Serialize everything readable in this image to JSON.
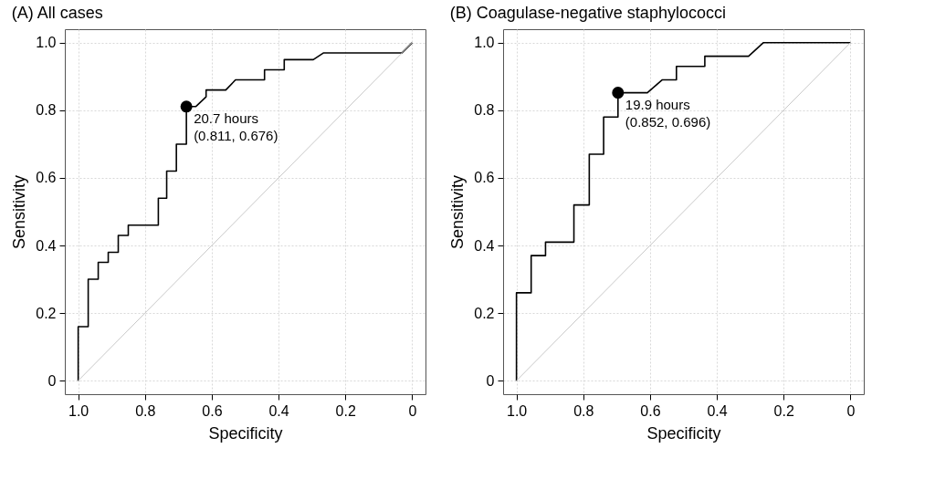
{
  "chart_data": [
    {
      "type": "line",
      "title": "(A) All cases",
      "xlabel": "Specificity",
      "ylabel": "Sensitivity",
      "xlim": [
        1.04,
        -0.04
      ],
      "ylim": [
        -0.04,
        1.04
      ],
      "xticks": [
        {
          "value": 1,
          "label": "1.0"
        },
        0.8,
        0.6,
        0.4,
        0.2,
        0
      ],
      "yticks": [
        0,
        0.2,
        0.4,
        0.6,
        0.8,
        {
          "value": 1,
          "label": "1.0"
        }
      ],
      "grid": true,
      "series": [
        {
          "color": "#000000",
          "marker": "none",
          "x": [
            1.0,
            1.0,
            0.97,
            0.97,
            0.94,
            0.94,
            0.91,
            0.91,
            0.88,
            0.88,
            0.85,
            0.85,
            0.76,
            0.76,
            0.735,
            0.735,
            0.706,
            0.706,
            0.676,
            0.676,
            0.648,
            0.617,
            0.617,
            0.558,
            0.529,
            0.442,
            0.442,
            0.383,
            0.383,
            0.296,
            0.265,
            0.03,
            0
          ],
          "values": [
            0,
            0.16,
            0.16,
            0.3,
            0.3,
            0.35,
            0.35,
            0.38,
            0.38,
            0.43,
            0.43,
            0.46,
            0.46,
            0.54,
            0.54,
            0.62,
            0.62,
            0.7,
            0.7,
            0.811,
            0.811,
            0.84,
            0.86,
            0.86,
            0.89,
            0.89,
            0.92,
            0.92,
            0.95,
            0.95,
            0.97,
            0.97,
            1.0
          ]
        },
        {
          "type": "line",
          "color": "#c8c8c8",
          "marker": "none",
          "x": [
            1,
            0
          ],
          "values": [
            0,
            1
          ]
        },
        {
          "type": "scatter",
          "color": "#000000",
          "marker": "circle",
          "x": [
            0.676
          ],
          "values": [
            0.811
          ]
        }
      ],
      "annotations": [
        {
          "text": "20.7 hours\n(0.811, 0.676)",
          "x": 0.676,
          "y": 0.811
        }
      ]
    },
    {
      "type": "line",
      "title": "(B) Coagulase-negative staphylococci",
      "xlabel": "Specificity",
      "ylabel": "Sensitivity",
      "xlim": [
        1.04,
        -0.04
      ],
      "ylim": [
        -0.04,
        1.04
      ],
      "xticks": [
        {
          "value": 1,
          "label": "1.0"
        },
        0.8,
        0.6,
        0.4,
        0.2,
        0
      ],
      "yticks": [
        0,
        0.2,
        0.4,
        0.6,
        0.8,
        {
          "value": 1,
          "label": "1.0"
        }
      ],
      "grid": true,
      "series": [
        {
          "color": "#000000",
          "marker": "none",
          "x": [
            1,
            1,
            0.956,
            0.956,
            0.913,
            0.913,
            0.828,
            0.828,
            0.782,
            0.782,
            0.739,
            0.739,
            0.696,
            0.696,
            0.608,
            0.564,
            0.521,
            0.521,
            0.436,
            0.436,
            0.305,
            0.261,
            0
          ],
          "values": [
            0,
            0.26,
            0.26,
            0.37,
            0.37,
            0.41,
            0.41,
            0.52,
            0.52,
            0.67,
            0.67,
            0.78,
            0.78,
            0.852,
            0.852,
            0.89,
            0.89,
            0.93,
            0.93,
            0.96,
            0.96,
            1.0,
            1.0
          ]
        },
        {
          "type": "line",
          "color": "#c8c8c8",
          "marker": "none",
          "x": [
            1,
            0
          ],
          "values": [
            0,
            1
          ]
        },
        {
          "type": "scatter",
          "color": "#000000",
          "marker": "circle",
          "x": [
            0.696
          ],
          "values": [
            0.852
          ]
        }
      ],
      "annotations": [
        {
          "text": "19.9 hours\n(0.852, 0.696)",
          "x": 0.696,
          "y": 0.852
        }
      ]
    }
  ]
}
